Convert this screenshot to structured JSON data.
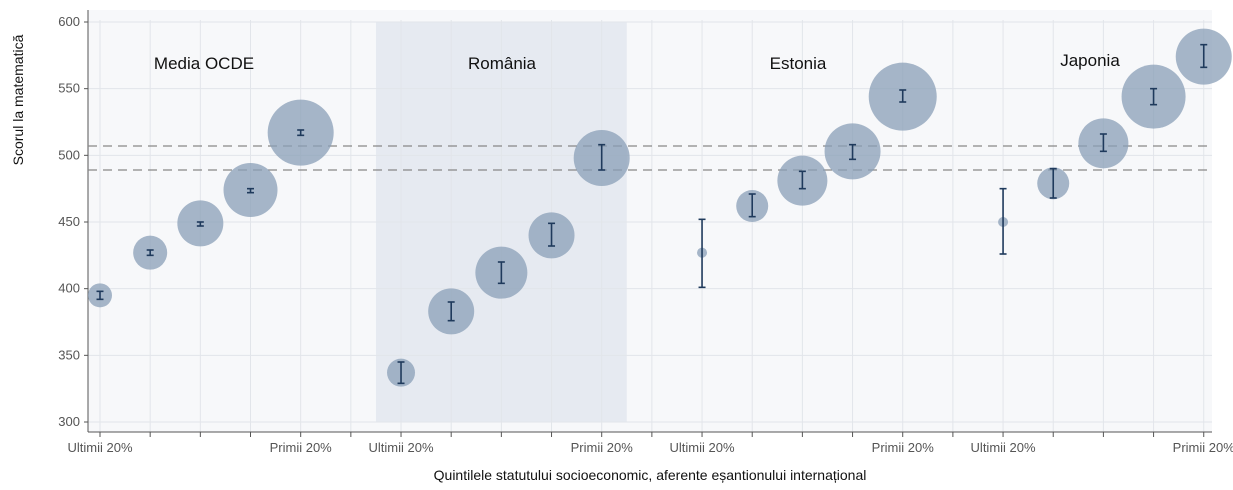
{
  "chart_data": {
    "type": "scatter",
    "ylabel": "Scorul la matematică",
    "xlabel": "Quintilele statutului socioeconomic, aferente eșantionului internațional",
    "ylim": [
      300,
      600
    ],
    "yticks": [
      300,
      350,
      400,
      450,
      500,
      550,
      600
    ],
    "grid": true,
    "reference_lines": [
      {
        "value": 507,
        "style": "dashed"
      },
      {
        "value": 489,
        "style": "dashed"
      }
    ],
    "groups": [
      {
        "name": "Media OCDE",
        "shaded": false,
        "x_labels": [
          "Ultimii 20%",
          "",
          "",
          "",
          "Primii 20%"
        ],
        "points": [
          {
            "y": 395,
            "ci": [
              392,
              398
            ],
            "bubble": 12
          },
          {
            "y": 427,
            "ci": [
              425,
              429
            ],
            "bubble": 17
          },
          {
            "y": 449,
            "ci": [
              447,
              450
            ],
            "bubble": 23
          },
          {
            "y": 474,
            "ci": [
              472,
              475
            ],
            "bubble": 27
          },
          {
            "y": 517,
            "ci": [
              515,
              519
            ],
            "bubble": 33
          }
        ]
      },
      {
        "name": "România",
        "shaded": true,
        "x_labels": [
          "Ultimii 20%",
          "",
          "",
          "",
          "Primii 20%"
        ],
        "points": [
          {
            "y": 337,
            "ci": [
              329,
              345
            ],
            "bubble": 14
          },
          {
            "y": 383,
            "ci": [
              376,
              390
            ],
            "bubble": 23
          },
          {
            "y": 412,
            "ci": [
              404,
              420
            ],
            "bubble": 26
          },
          {
            "y": 440,
            "ci": [
              432,
              449
            ],
            "bubble": 23
          },
          {
            "y": 498,
            "ci": [
              489,
              508
            ],
            "bubble": 28
          }
        ]
      },
      {
        "name": "Estonia",
        "shaded": false,
        "x_labels": [
          "Ultimii 20%",
          "",
          "",
          "",
          "Primii 20%"
        ],
        "points": [
          {
            "y": 427,
            "ci": [
              401,
              452
            ],
            "bubble": 5
          },
          {
            "y": 462,
            "ci": [
              454,
              471
            ],
            "bubble": 16
          },
          {
            "y": 481,
            "ci": [
              475,
              488
            ],
            "bubble": 25
          },
          {
            "y": 503,
            "ci": [
              497,
              508
            ],
            "bubble": 28
          },
          {
            "y": 544,
            "ci": [
              540,
              549
            ],
            "bubble": 34
          }
        ]
      },
      {
        "name": "Japonia",
        "shaded": false,
        "x_labels": [
          "Ultimii 20%",
          "",
          "",
          "",
          "Primii 20%"
        ],
        "points": [
          {
            "y": 450,
            "ci": [
              426,
              475
            ],
            "bubble": 5
          },
          {
            "y": 479,
            "ci": [
              468,
              490
            ],
            "bubble": 16
          },
          {
            "y": 509,
            "ci": [
              503,
              516
            ],
            "bubble": 25
          },
          {
            "y": 544,
            "ci": [
              538,
              550
            ],
            "bubble": 32
          },
          {
            "y": 574,
            "ci": [
              566,
              583
            ],
            "bubble": 28
          }
        ]
      }
    ],
    "colors": {
      "bubble": "#8a9fb7",
      "errorbar": "#1f3a5c",
      "shade": "#e6eaf1",
      "plot_bg": "#f7f8fa",
      "grid": "#e2e5ea",
      "ref_line": "#888888",
      "axis": "#555555"
    }
  }
}
